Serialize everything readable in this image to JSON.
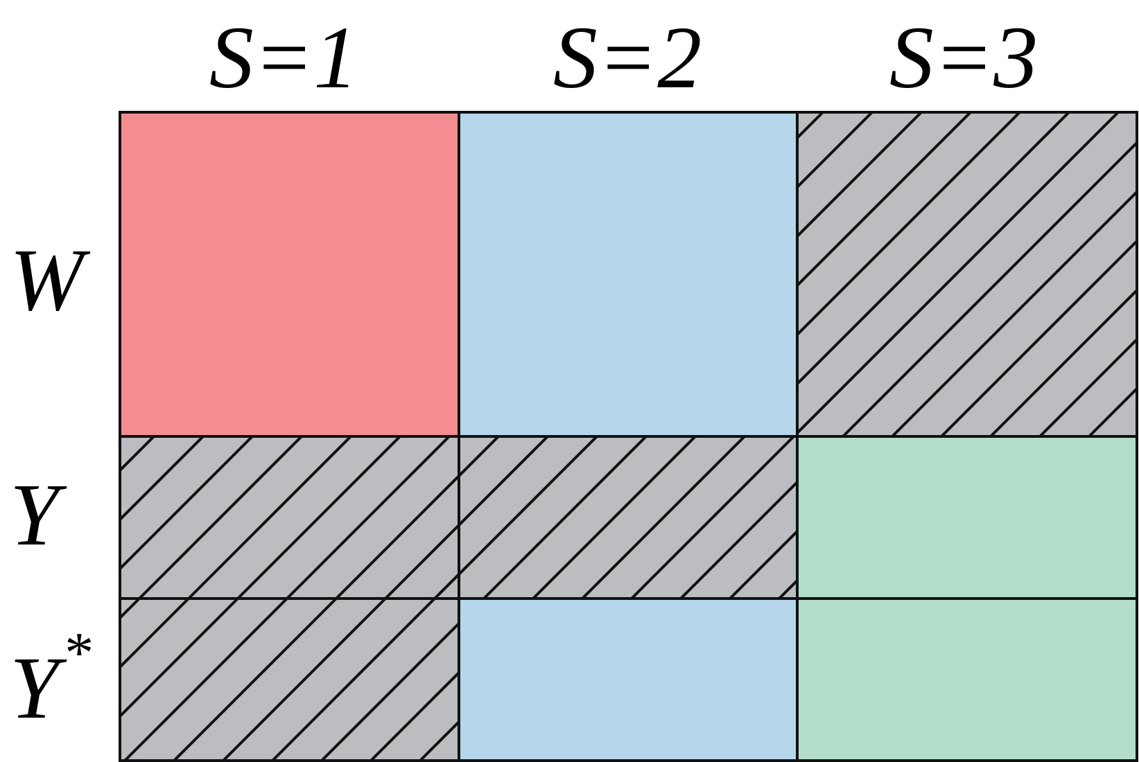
{
  "columns": [
    {
      "label": "S=1"
    },
    {
      "label": "S=2"
    },
    {
      "label": "S=3"
    }
  ],
  "rows": [
    {
      "label": "W",
      "superscript": ""
    },
    {
      "label": "Y",
      "superscript": ""
    },
    {
      "label": "Y",
      "superscript": "*"
    }
  ],
  "colors": {
    "red": "#F48D91",
    "blue": "#B6D6EB",
    "green": "#B3DEC9",
    "gray": "#BCBDC0",
    "line": "#111111"
  },
  "cells": [
    [
      "red",
      "blue",
      "gray-hatched"
    ],
    [
      "gray-hatched",
      "gray-hatched",
      "green"
    ],
    [
      "gray-hatched",
      "blue",
      "green"
    ]
  ]
}
